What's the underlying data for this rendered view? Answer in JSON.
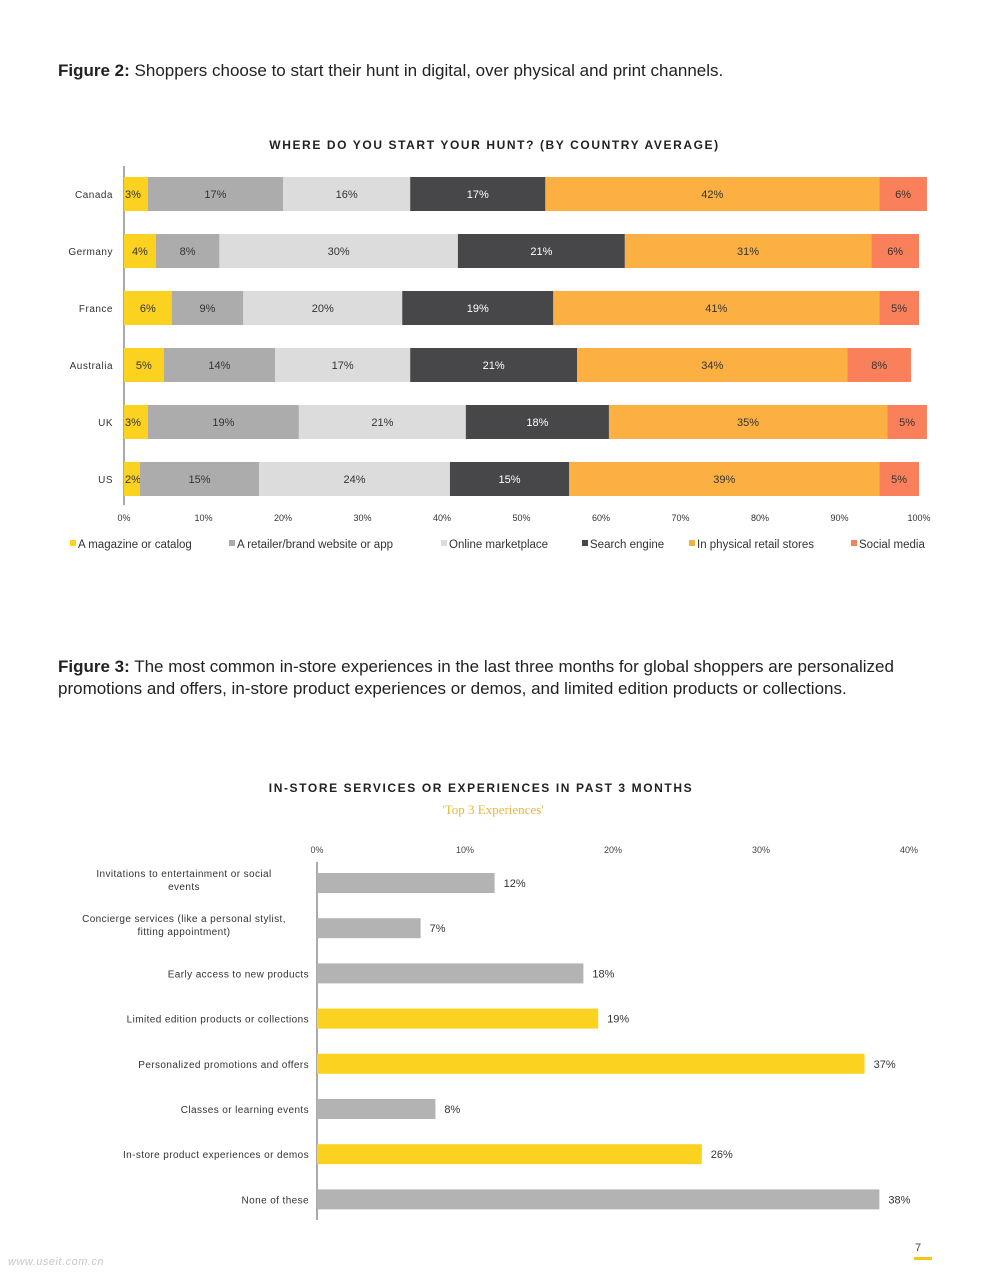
{
  "figure2": {
    "label": "Figure 2:",
    "caption": "Shoppers choose to start their hunt in digital, over physical and print channels."
  },
  "figure3": {
    "label": "Figure 3:",
    "caption": "The most common in-store experiences in the last three months for global shoppers are personalized promotions and offers, in-store product experiences or demos, and limited edition products or collections."
  },
  "page_number": "7",
  "watermark": "www.useit.com.cn",
  "chart_data": [
    {
      "type": "bar",
      "orientation": "horizontal",
      "stacked": true,
      "title": "WHERE DO YOU START YOUR HUNT? (BY COUNTRY AVERAGE)",
      "categories": [
        "Canada",
        "Germany",
        "France",
        "Australia",
        "UK",
        "US"
      ],
      "series": [
        {
          "name": "A magazine or catalog",
          "color": "#fbd21f",
          "values": [
            3,
            4,
            6,
            5,
            3,
            2
          ]
        },
        {
          "name": "A retailer/brand website or app",
          "color": "#acacac",
          "values": [
            17,
            8,
            9,
            14,
            19,
            15
          ]
        },
        {
          "name": "Online marketplace",
          "color": "#dcdcdc",
          "values": [
            16,
            30,
            20,
            17,
            21,
            24
          ]
        },
        {
          "name": "Search engine",
          "color": "#47474a",
          "values": [
            17,
            21,
            19,
            21,
            18,
            15
          ]
        },
        {
          "name": "In physical retail stores",
          "color": "#fbb041",
          "values": [
            42,
            31,
            41,
            34,
            35,
            39
          ]
        },
        {
          "name": "Social media",
          "color": "#f9805a",
          "values": [
            6,
            6,
            5,
            8,
            5,
            5
          ]
        }
      ],
      "xticks": [
        "0%",
        "10%",
        "20%",
        "30%",
        "40%",
        "50%",
        "60%",
        "70%",
        "80%",
        "90%",
        "100%"
      ],
      "xlim": [
        0,
        100
      ],
      "legend": "bottom",
      "grid": false
    },
    {
      "type": "bar",
      "orientation": "horizontal",
      "title": "IN-STORE SERVICES OR EXPERIENCES IN PAST 3 MONTHS",
      "subtitle": "'Top 3 Experiences'",
      "categories": [
        "Invitations to entertainment or social events",
        "Concierge services (like a personal stylist, fitting appointment)",
        "Early access to new products",
        "Limited edition products or collections",
        "Personalized promotions and offers",
        "Classes or learning events",
        "In-store product experiences or demos",
        "None of these"
      ],
      "values": [
        12,
        7,
        18,
        19,
        37,
        8,
        26,
        38
      ],
      "highlight": [
        false,
        false,
        false,
        true,
        true,
        false,
        true,
        false
      ],
      "colors": {
        "default": "#b3b3b3",
        "highlight": "#fbd21f"
      },
      "xticks": [
        "0%",
        "10%",
        "20%",
        "30%",
        "40%"
      ],
      "xlim": [
        0,
        40
      ],
      "grid": false
    }
  ]
}
